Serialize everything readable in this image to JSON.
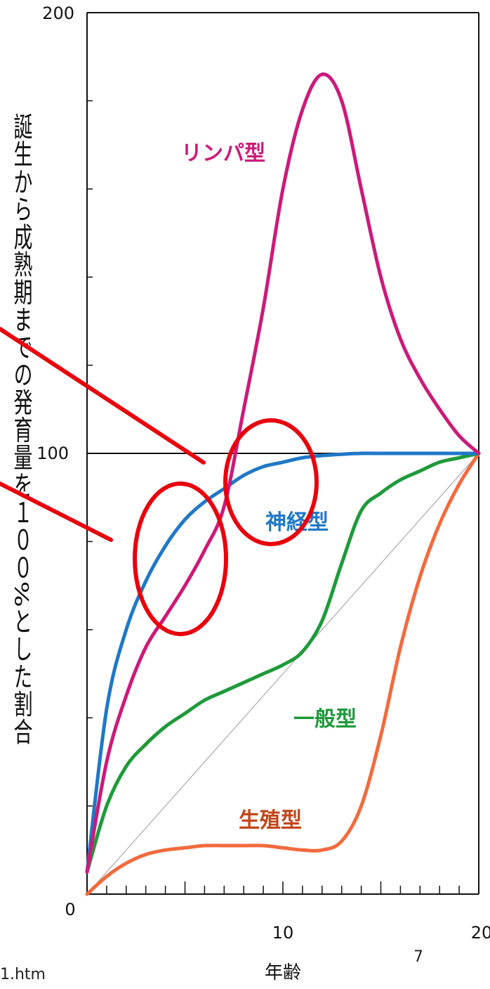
{
  "chart_data": {
    "type": "line",
    "xlabel": "年齢",
    "ylabel": "誕生から成熟期までの発育量を１００%とした割合",
    "xlim": [
      0,
      20
    ],
    "ylim": [
      0,
      200
    ],
    "x_tick_labels": [
      "0",
      "10",
      "20"
    ],
    "y_tick_labels": [
      "100",
      "200"
    ],
    "y_reference_line": 100,
    "series": [
      {
        "name": "リンパ型",
        "color": "#cc1a7a",
        "x": [
          0,
          1,
          2,
          3,
          4,
          5,
          6,
          7,
          8,
          9,
          10,
          11,
          12,
          13,
          14,
          15,
          16,
          17,
          18,
          19,
          20
        ],
        "y": [
          5,
          30,
          45,
          56,
          63,
          70,
          78,
          88,
          110,
          133,
          160,
          178,
          186,
          180,
          160,
          140,
          126,
          117,
          110,
          104,
          100
        ]
      },
      {
        "name": "神経型",
        "color": "#1f78c8",
        "x": [
          0,
          1,
          2,
          3,
          4,
          5,
          6,
          7,
          8,
          9,
          10,
          11,
          12,
          13,
          14,
          15,
          16,
          17,
          18,
          19,
          20
        ],
        "y": [
          5,
          42,
          60,
          71,
          79,
          85,
          89,
          92,
          95,
          97,
          98,
          99,
          99.5,
          99.8,
          100,
          100,
          100,
          100,
          100,
          100,
          100
        ]
      },
      {
        "name": "一般型",
        "color": "#1e9a3a",
        "x": [
          0,
          1,
          2,
          3,
          4,
          5,
          6,
          7,
          8,
          9,
          10,
          11,
          12,
          13,
          14,
          15,
          16,
          17,
          18,
          19,
          20
        ],
        "y": [
          5,
          20,
          29,
          34,
          38,
          41,
          44,
          46,
          48,
          50,
          52,
          55,
          62,
          75,
          87,
          91,
          94,
          96,
          98,
          99,
          100
        ]
      },
      {
        "name": "生殖型",
        "color": "#f26a3d",
        "x": [
          0,
          1,
          2,
          3,
          4,
          5,
          6,
          7,
          8,
          9,
          10,
          11,
          12,
          13,
          14,
          15,
          16,
          17,
          18,
          19,
          20
        ],
        "y": [
          0,
          4,
          7,
          9,
          10,
          10.5,
          11,
          11,
          11,
          11,
          10.5,
          10,
          10,
          12,
          20,
          36,
          56,
          72,
          84,
          93,
          100
        ]
      }
    ],
    "diagonal_reference": {
      "from": [
        0,
        0
      ],
      "to": [
        20,
        100
      ]
    },
    "grid": false
  },
  "page": {
    "page_number": "7",
    "source_fragment": "1.htm"
  },
  "annotations": {
    "circle_color": "#e8000d",
    "line_color": "#e8000d"
  }
}
